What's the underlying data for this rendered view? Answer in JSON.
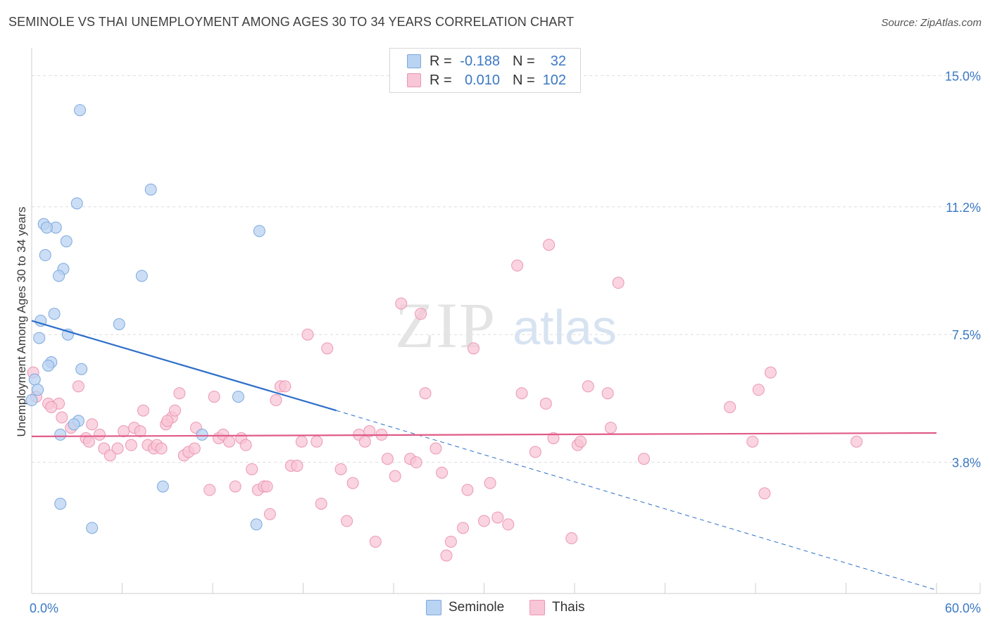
{
  "header": {
    "title": "SEMINOLE VS THAI UNEMPLOYMENT AMONG AGES 30 TO 34 YEARS CORRELATION CHART",
    "source": "Source: ZipAtlas.com"
  },
  "watermark": {
    "zip": "ZIP",
    "atlas": "atlas"
  },
  "legend": {
    "seminole": {
      "r_label": "R =",
      "r_value": "-0.188",
      "n_label": "N =",
      "n_value": "32"
    },
    "thais": {
      "r_label": "R =",
      "r_value": "0.010",
      "n_label": "N =",
      "n_value": "102"
    }
  },
  "colors": {
    "seminole_fill": "#b9d3f2",
    "seminole_stroke": "#7ea9de",
    "seminole_line": "#2e6fc9",
    "thais_fill": "#f8c6d6",
    "thais_stroke": "#eb97b4",
    "thais_line": "#e05a88",
    "tick_label": "#3b78c4",
    "grid": "#dddddd"
  },
  "chart_data": {
    "type": "scatter",
    "title": "SEMINOLE VS THAI UNEMPLOYMENT AMONG AGES 30 TO 34 YEARS CORRELATION CHART",
    "xlabel": "",
    "ylabel": "Unemployment Among Ages 30 to 34 years",
    "xlim": [
      0,
      60
    ],
    "ylim": [
      0,
      15.6
    ],
    "x_tick_labels": [
      "0.0%",
      "60.0%"
    ],
    "y_ticks": [
      3.8,
      7.5,
      11.2,
      15.0
    ],
    "y_tick_labels": [
      "3.8%",
      "7.5%",
      "11.2%",
      "15.0%"
    ],
    "grid": true,
    "legend_position": "bottom-center",
    "series": [
      {
        "name": "Seminole",
        "r": -0.188,
        "n": 32,
        "trend": {
          "x_solid": [
            0,
            20.2
          ],
          "y_solid": [
            7.9,
            5.3
          ],
          "x_dashed": [
            20.2,
            60
          ],
          "y_dashed": [
            5.3,
            0.1
          ]
        },
        "points": [
          {
            "x": 3.2,
            "y": 14.0
          },
          {
            "x": 7.9,
            "y": 11.7
          },
          {
            "x": 3.0,
            "y": 11.3
          },
          {
            "x": 0.8,
            "y": 10.7
          },
          {
            "x": 1.6,
            "y": 10.6
          },
          {
            "x": 1.0,
            "y": 10.6
          },
          {
            "x": 15.1,
            "y": 10.5
          },
          {
            "x": 2.3,
            "y": 10.2
          },
          {
            "x": 0.9,
            "y": 9.8
          },
          {
            "x": 2.1,
            "y": 9.4
          },
          {
            "x": 1.8,
            "y": 9.2
          },
          {
            "x": 7.3,
            "y": 9.2
          },
          {
            "x": 1.5,
            "y": 8.1
          },
          {
            "x": 0.6,
            "y": 7.9
          },
          {
            "x": 5.8,
            "y": 7.8
          },
          {
            "x": 2.4,
            "y": 7.5
          },
          {
            "x": 0.5,
            "y": 7.4
          },
          {
            "x": 1.3,
            "y": 6.7
          },
          {
            "x": 1.1,
            "y": 6.6
          },
          {
            "x": 3.3,
            "y": 6.5
          },
          {
            "x": 0.2,
            "y": 6.2
          },
          {
            "x": 0.4,
            "y": 5.9
          },
          {
            "x": 13.7,
            "y": 5.7
          },
          {
            "x": 0.0,
            "y": 5.6
          },
          {
            "x": 3.1,
            "y": 5.0
          },
          {
            "x": 2.8,
            "y": 4.9
          },
          {
            "x": 1.9,
            "y": 4.6
          },
          {
            "x": 11.3,
            "y": 4.6
          },
          {
            "x": 8.7,
            "y": 3.1
          },
          {
            "x": 1.9,
            "y": 2.6
          },
          {
            "x": 14.9,
            "y": 2.0
          },
          {
            "x": 4.0,
            "y": 1.9
          }
        ]
      },
      {
        "name": "Thais",
        "r": 0.01,
        "n": 102,
        "trend": {
          "x": [
            0,
            60
          ],
          "y": [
            4.55,
            4.65
          ]
        },
        "points": [
          {
            "x": 0.1,
            "y": 6.4
          },
          {
            "x": 0.3,
            "y": 5.7
          },
          {
            "x": 1.1,
            "y": 5.5
          },
          {
            "x": 1.8,
            "y": 5.5
          },
          {
            "x": 1.3,
            "y": 5.4
          },
          {
            "x": 2.0,
            "y": 5.1
          },
          {
            "x": 2.6,
            "y": 4.8
          },
          {
            "x": 3.1,
            "y": 6.0
          },
          {
            "x": 4.0,
            "y": 4.9
          },
          {
            "x": 4.5,
            "y": 4.6
          },
          {
            "x": 3.6,
            "y": 4.5
          },
          {
            "x": 3.8,
            "y": 4.4
          },
          {
            "x": 4.8,
            "y": 4.2
          },
          {
            "x": 5.2,
            "y": 4.0
          },
          {
            "x": 5.7,
            "y": 4.2
          },
          {
            "x": 6.1,
            "y": 4.7
          },
          {
            "x": 6.8,
            "y": 4.8
          },
          {
            "x": 7.2,
            "y": 4.7
          },
          {
            "x": 6.6,
            "y": 4.3
          },
          {
            "x": 7.4,
            "y": 5.3
          },
          {
            "x": 7.7,
            "y": 4.3
          },
          {
            "x": 8.1,
            "y": 4.2
          },
          {
            "x": 8.3,
            "y": 4.3
          },
          {
            "x": 8.6,
            "y": 4.2
          },
          {
            "x": 8.9,
            "y": 4.9
          },
          {
            "x": 9.3,
            "y": 5.1
          },
          {
            "x": 9.5,
            "y": 5.3
          },
          {
            "x": 9.8,
            "y": 5.8
          },
          {
            "x": 10.1,
            "y": 4.0
          },
          {
            "x": 10.4,
            "y": 4.1
          },
          {
            "x": 10.8,
            "y": 4.2
          },
          {
            "x": 10.9,
            "y": 4.8
          },
          {
            "x": 11.8,
            "y": 3.0
          },
          {
            "x": 12.1,
            "y": 5.7
          },
          {
            "x": 12.4,
            "y": 4.5
          },
          {
            "x": 12.7,
            "y": 4.6
          },
          {
            "x": 13.1,
            "y": 4.4
          },
          {
            "x": 13.5,
            "y": 3.1
          },
          {
            "x": 13.9,
            "y": 4.5
          },
          {
            "x": 14.2,
            "y": 4.3
          },
          {
            "x": 14.6,
            "y": 3.6
          },
          {
            "x": 15.0,
            "y": 3.0
          },
          {
            "x": 15.4,
            "y": 3.1
          },
          {
            "x": 15.8,
            "y": 2.3
          },
          {
            "x": 16.2,
            "y": 5.6
          },
          {
            "x": 16.5,
            "y": 6.0
          },
          {
            "x": 16.8,
            "y": 6.0
          },
          {
            "x": 17.2,
            "y": 3.7
          },
          {
            "x": 17.6,
            "y": 3.7
          },
          {
            "x": 17.9,
            "y": 4.4
          },
          {
            "x": 18.3,
            "y": 7.5
          },
          {
            "x": 18.9,
            "y": 4.4
          },
          {
            "x": 19.2,
            "y": 2.6
          },
          {
            "x": 19.6,
            "y": 7.1
          },
          {
            "x": 20.5,
            "y": 3.6
          },
          {
            "x": 20.9,
            "y": 2.1
          },
          {
            "x": 21.3,
            "y": 3.2
          },
          {
            "x": 21.7,
            "y": 4.6
          },
          {
            "x": 22.1,
            "y": 4.4
          },
          {
            "x": 22.4,
            "y": 4.7
          },
          {
            "x": 22.8,
            "y": 1.5
          },
          {
            "x": 23.2,
            "y": 4.6
          },
          {
            "x": 23.6,
            "y": 3.9
          },
          {
            "x": 24.1,
            "y": 3.4
          },
          {
            "x": 24.5,
            "y": 8.4
          },
          {
            "x": 25.1,
            "y": 3.9
          },
          {
            "x": 25.5,
            "y": 3.8
          },
          {
            "x": 26.1,
            "y": 5.8
          },
          {
            "x": 25.8,
            "y": 8.1
          },
          {
            "x": 26.8,
            "y": 4.2
          },
          {
            "x": 27.2,
            "y": 3.5
          },
          {
            "x": 27.5,
            "y": 1.1
          },
          {
            "x": 27.8,
            "y": 1.5
          },
          {
            "x": 28.6,
            "y": 1.9
          },
          {
            "x": 28.9,
            "y": 3.0
          },
          {
            "x": 29.3,
            "y": 7.1
          },
          {
            "x": 30.0,
            "y": 2.1
          },
          {
            "x": 30.4,
            "y": 3.2
          },
          {
            "x": 30.9,
            "y": 2.2
          },
          {
            "x": 31.6,
            "y": 2.0
          },
          {
            "x": 32.5,
            "y": 5.8
          },
          {
            "x": 33.4,
            "y": 4.1
          },
          {
            "x": 34.1,
            "y": 5.5
          },
          {
            "x": 34.6,
            "y": 4.5
          },
          {
            "x": 34.3,
            "y": 10.1
          },
          {
            "x": 35.8,
            "y": 1.6
          },
          {
            "x": 36.2,
            "y": 4.3
          },
          {
            "x": 32.2,
            "y": 9.5
          },
          {
            "x": 36.4,
            "y": 4.4
          },
          {
            "x": 36.9,
            "y": 6.0
          },
          {
            "x": 38.2,
            "y": 5.8
          },
          {
            "x": 38.4,
            "y": 4.8
          },
          {
            "x": 38.9,
            "y": 9.0
          },
          {
            "x": 40.6,
            "y": 3.9
          },
          {
            "x": 46.3,
            "y": 5.4
          },
          {
            "x": 47.8,
            "y": 4.4
          },
          {
            "x": 48.2,
            "y": 5.9
          },
          {
            "x": 48.6,
            "y": 2.9
          },
          {
            "x": 49.0,
            "y": 6.4
          },
          {
            "x": 54.7,
            "y": 4.4
          },
          {
            "x": 15.6,
            "y": 3.1
          },
          {
            "x": 9.0,
            "y": 5.0
          }
        ]
      }
    ]
  }
}
